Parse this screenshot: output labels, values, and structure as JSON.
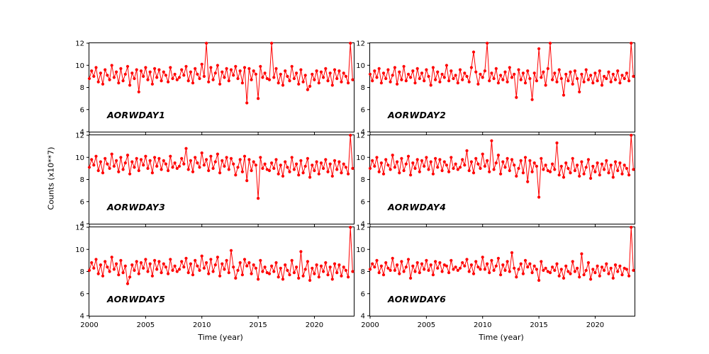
{
  "figure": {
    "ylabel": "Counts (x10**7)",
    "xlabel": "Time (year)",
    "line_color": "#ff0000",
    "background": "#ffffff"
  },
  "axes": {
    "x_ticks": [
      2000,
      2005,
      2010,
      2015,
      2020
    ],
    "y_ticks": [
      4,
      6,
      8,
      10,
      12
    ],
    "x_range": [
      2000,
      2023.5
    ],
    "y_range": [
      4,
      12
    ]
  },
  "chart_data": [
    {
      "type": "line",
      "name": "AORWDAY1",
      "xlabel": "Time (year)",
      "ylabel": "Counts (x10**7)",
      "xlim": [
        2000,
        2023.5
      ],
      "ylim": [
        4,
        12
      ],
      "x_start": 2000.0,
      "x_step": 0.2,
      "values": [
        8.8,
        9.5,
        9.0,
        9.8,
        8.5,
        9.3,
        8.3,
        9.6,
        9.1,
        8.7,
        10.0,
        8.9,
        9.4,
        8.4,
        9.7,
        8.6,
        9.2,
        9.9,
        8.2,
        9.3,
        8.8,
        9.6,
        7.6,
        9.5,
        9.0,
        9.8,
        8.7,
        9.4,
        8.3,
        9.7,
        8.9,
        9.6,
        8.6,
        9.4,
        9.1,
        8.5,
        9.8,
        8.8,
        9.2,
        8.7,
        8.9,
        9.6,
        9.1,
        9.9,
        8.6,
        9.4,
        8.4,
        9.7,
        9.2,
        8.8,
        10.1,
        9.0,
        12.0,
        8.5,
        9.8,
        8.7,
        9.3,
        10.0,
        8.3,
        9.4,
        8.9,
        9.7,
        8.6,
        9.6,
        9.1,
        9.9,
        8.8,
        9.5,
        8.4,
        9.8,
        6.6,
        9.7,
        8.7,
        9.5,
        9.2,
        7.0,
        9.9,
        8.9,
        9.3,
        8.8,
        8.7,
        12.0,
        8.9,
        9.7,
        8.4,
        9.2,
        8.2,
        9.5,
        9.0,
        8.6,
        9.9,
        8.8,
        9.3,
        8.3,
        9.6,
        8.5,
        9.1,
        7.8,
        8.1,
        9.2,
        8.7,
        9.5,
        8.4,
        9.4,
        8.9,
        9.7,
        8.6,
        9.3,
        8.2,
        9.6,
        8.8,
        9.5,
        8.5,
        9.3,
        9.0,
        8.4,
        12.0,
        8.7
      ]
    },
    {
      "type": "line",
      "name": "AORWDAY2",
      "xlabel": "Time (year)",
      "ylabel": "Counts (x10**7)",
      "xlim": [
        2000,
        2023.5
      ],
      "ylim": [
        4,
        12
      ],
      "x_start": 2000.0,
      "x_step": 0.2,
      "values": [
        9.2,
        8.6,
        9.5,
        8.9,
        9.7,
        8.4,
        9.3,
        8.8,
        9.6,
        8.5,
        9.1,
        9.8,
        8.3,
        9.4,
        8.7,
        9.9,
        8.6,
        9.2,
        8.9,
        9.5,
        8.4,
        9.7,
        8.8,
        9.3,
        8.6,
        9.6,
        9.0,
        8.2,
        9.8,
        8.7,
        9.4,
        8.5,
        9.2,
        8.9,
        10.0,
        8.6,
        9.5,
        8.8,
        9.1,
        8.4,
        9.6,
        8.7,
        9.3,
        9.0,
        8.5,
        9.8,
        11.2,
        9.4,
        8.3,
        9.2,
        8.9,
        9.5,
        12.0,
        8.6,
        9.3,
        8.8,
        9.7,
        8.4,
        9.1,
        8.7,
        9.4,
        8.5,
        9.8,
        8.9,
        9.2,
        7.1,
        9.6,
        8.7,
        9.3,
        8.4,
        9.5,
        8.8,
        6.9,
        9.3,
        8.6,
        11.5,
        8.9,
        9.4,
        8.2,
        9.7,
        12.0,
        8.7,
        9.3,
        8.5,
        9.6,
        8.8,
        7.3,
        9.2,
        8.6,
        9.4,
        8.3,
        9.5,
        8.8,
        7.6,
        9.2,
        8.5,
        9.6,
        8.7,
        9.1,
        8.4,
        9.3,
        8.6,
        9.5,
        8.2,
        9.0,
        8.8,
        9.4,
        8.5,
        9.2,
        8.7,
        9.5,
        8.4,
        9.1,
        8.8,
        9.3,
        8.6,
        12.0,
        9.0
      ]
    },
    {
      "type": "line",
      "name": "AORWDAY3",
      "xlabel": "Time (year)",
      "ylabel": "Counts (x10**7)",
      "xlim": [
        2000,
        2023.5
      ],
      "ylim": [
        4,
        12
      ],
      "x_start": 2000.0,
      "x_step": 0.2,
      "values": [
        9.1,
        9.8,
        9.3,
        10.1,
        8.8,
        9.6,
        8.6,
        9.9,
        9.4,
        9.0,
        10.3,
        9.2,
        9.7,
        8.7,
        10.0,
        8.9,
        9.5,
        10.2,
        8.5,
        9.6,
        9.1,
        9.9,
        8.8,
        9.8,
        9.3,
        10.1,
        9.0,
        9.7,
        8.6,
        10.0,
        9.2,
        9.9,
        8.9,
        9.7,
        9.4,
        8.8,
        10.1,
        9.1,
        9.5,
        9.0,
        9.2,
        9.9,
        9.4,
        10.8,
        8.9,
        9.7,
        8.7,
        10.0,
        9.5,
        9.1,
        10.4,
        9.3,
        9.8,
        8.8,
        10.1,
        9.0,
        9.6,
        10.3,
        8.6,
        9.7,
        9.2,
        10.0,
        8.9,
        9.9,
        9.4,
        8.4,
        9.1,
        9.8,
        8.7,
        10.1,
        7.9,
        9.8,
        8.8,
        9.6,
        9.3,
        6.3,
        10.0,
        9.0,
        9.4,
        8.9,
        8.8,
        9.5,
        9.0,
        9.8,
        8.5,
        9.3,
        8.3,
        9.6,
        9.1,
        8.7,
        10.0,
        8.9,
        9.4,
        8.4,
        9.7,
        8.6,
        9.2,
        9.9,
        8.2,
        9.3,
        8.8,
        9.6,
        8.5,
        9.5,
        9.0,
        9.8,
        8.7,
        9.4,
        8.3,
        9.7,
        8.9,
        9.6,
        8.6,
        9.4,
        9.1,
        8.5,
        12.0,
        9.0
      ]
    },
    {
      "type": "line",
      "name": "AORWDAY4",
      "xlabel": "Time (year)",
      "ylabel": "Counts (x10**7)",
      "xlim": [
        2000,
        2023.5
      ],
      "ylim": [
        4,
        12
      ],
      "x_start": 2000.0,
      "x_step": 0.2,
      "values": [
        9.0,
        9.7,
        9.2,
        10.0,
        8.7,
        9.5,
        8.5,
        9.8,
        9.3,
        8.9,
        10.2,
        9.1,
        9.6,
        8.6,
        9.9,
        8.8,
        9.4,
        10.1,
        8.4,
        9.5,
        9.0,
        9.8,
        8.7,
        9.7,
        9.2,
        10.0,
        8.9,
        9.6,
        8.5,
        9.9,
        9.1,
        9.8,
        8.8,
        9.6,
        9.3,
        8.7,
        10.0,
        9.0,
        9.4,
        8.9,
        9.1,
        9.8,
        9.3,
        10.6,
        8.8,
        9.6,
        8.6,
        9.9,
        9.4,
        9.0,
        10.3,
        9.2,
        9.7,
        8.7,
        11.5,
        8.9,
        9.5,
        10.2,
        8.5,
        9.6,
        9.1,
        9.9,
        8.8,
        9.8,
        9.3,
        8.3,
        9.0,
        9.7,
        8.6,
        10.0,
        7.8,
        9.7,
        8.7,
        9.5,
        9.2,
        6.4,
        9.9,
        8.9,
        9.3,
        8.8,
        8.7,
        9.4,
        8.9,
        11.3,
        8.4,
        9.2,
        8.2,
        9.5,
        9.0,
        8.6,
        9.9,
        8.8,
        9.3,
        8.3,
        9.6,
        8.5,
        9.1,
        9.8,
        8.1,
        9.2,
        8.7,
        9.5,
        8.4,
        9.4,
        8.9,
        9.7,
        8.6,
        9.3,
        8.2,
        9.6,
        8.8,
        9.5,
        8.5,
        9.3,
        9.0,
        8.4,
        12.0,
        8.9
      ]
    },
    {
      "type": "line",
      "name": "AORWDAY5",
      "xlabel": "Time (year)",
      "ylabel": "Counts (x10**7)",
      "xlim": [
        2000,
        2023.5
      ],
      "ylim": [
        4,
        12
      ],
      "x_start": 2000.0,
      "x_step": 0.2,
      "values": [
        8.1,
        8.8,
        8.3,
        9.1,
        7.8,
        8.6,
        7.6,
        8.9,
        8.4,
        8.0,
        9.3,
        8.2,
        8.7,
        7.7,
        9.0,
        7.9,
        8.5,
        6.9,
        7.5,
        8.6,
        8.1,
        8.9,
        7.8,
        8.8,
        8.3,
        9.1,
        8.0,
        8.7,
        7.6,
        9.0,
        8.2,
        8.9,
        7.9,
        8.7,
        8.4,
        7.8,
        9.1,
        8.1,
        8.5,
        8.0,
        8.2,
        8.9,
        8.4,
        9.2,
        7.9,
        8.7,
        7.7,
        9.0,
        8.5,
        8.1,
        9.4,
        8.3,
        8.8,
        7.8,
        9.1,
        8.0,
        8.6,
        9.3,
        7.6,
        8.7,
        8.2,
        9.0,
        7.9,
        9.9,
        8.4,
        7.4,
        8.1,
        8.8,
        7.7,
        9.1,
        8.5,
        8.8,
        7.8,
        8.6,
        8.3,
        7.3,
        9.0,
        8.0,
        8.4,
        7.9,
        7.8,
        8.5,
        8.0,
        8.8,
        7.5,
        8.3,
        7.3,
        8.6,
        8.1,
        7.7,
        9.0,
        7.9,
        8.4,
        7.4,
        9.8,
        7.6,
        8.2,
        8.9,
        7.2,
        8.3,
        7.8,
        8.6,
        7.5,
        8.5,
        8.0,
        8.8,
        7.7,
        8.4,
        7.3,
        8.7,
        7.9,
        8.6,
        7.6,
        8.4,
        8.1,
        7.5,
        12.0,
        8.0
      ]
    },
    {
      "type": "line",
      "name": "AORWDAY6",
      "xlabel": "Time (year)",
      "ylabel": "Counts (x10**7)",
      "xlim": [
        2000,
        2023.5
      ],
      "ylim": [
        4,
        12
      ],
      "x_start": 2000.0,
      "x_step": 0.2,
      "values": [
        8.2,
        8.7,
        8.4,
        9.0,
        7.9,
        8.5,
        7.7,
        8.8,
        8.3,
        8.1,
        9.2,
        8.1,
        8.6,
        7.8,
        8.9,
        8.0,
        8.4,
        9.1,
        7.4,
        8.5,
        8.0,
        8.8,
        7.9,
        8.7,
        8.2,
        9.0,
        8.1,
        8.6,
        7.7,
        8.9,
        8.3,
        8.8,
        8.0,
        8.6,
        8.5,
        7.9,
        9.0,
        8.2,
        8.4,
        8.1,
        8.3,
        8.8,
        8.5,
        9.1,
        8.0,
        8.6,
        7.8,
        8.9,
        8.4,
        8.2,
        9.3,
        8.2,
        8.7,
        7.9,
        9.0,
        8.1,
        8.5,
        9.2,
        7.7,
        8.6,
        8.1,
        8.9,
        8.0,
        9.7,
        8.3,
        7.5,
        8.2,
        8.7,
        7.8,
        9.0,
        8.4,
        8.7,
        7.9,
        8.5,
        8.2,
        7.2,
        8.9,
        8.1,
        8.3,
        8.0,
        7.9,
        8.4,
        8.1,
        8.7,
        7.6,
        8.2,
        7.4,
        8.5,
        8.0,
        7.8,
        8.9,
        8.0,
        8.3,
        7.5,
        9.6,
        7.7,
        8.1,
        8.8,
        7.3,
        8.2,
        7.9,
        8.5,
        7.6,
        8.4,
        8.1,
        8.7,
        7.8,
        8.3,
        7.4,
        8.6,
        8.0,
        8.5,
        7.7,
        8.3,
        8.2,
        7.6,
        12.0,
        8.1
      ]
    }
  ]
}
